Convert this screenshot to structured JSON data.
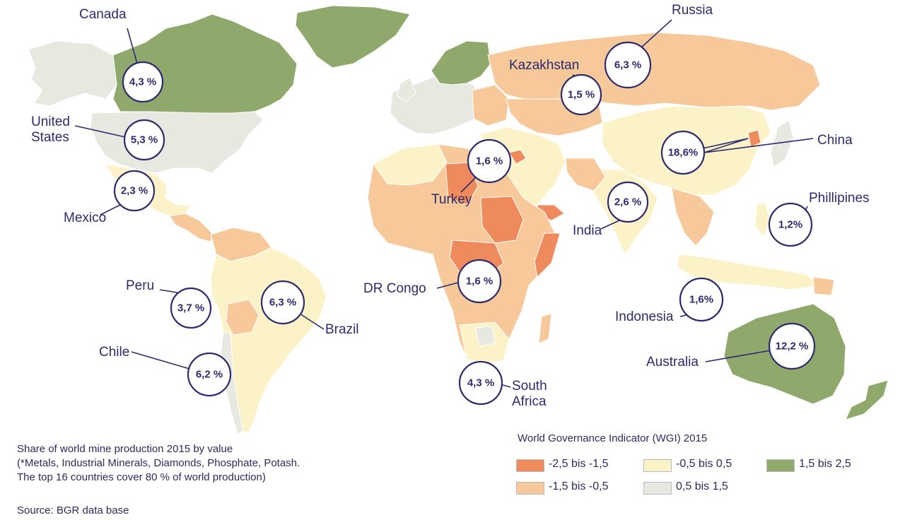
{
  "colors": {
    "wgi_neg_2_5_to_neg_1_5": "#ef8a5c",
    "wgi_neg_1_5_to_neg_0_5": "#f6c89a",
    "wgi_neg_0_5_to_0_5": "#fbf3c7",
    "wgi_0_5_to_1_5": "#e7e9e0",
    "wgi_1_5_to_2_5": "#8fa86b",
    "ocean": "#ffffff",
    "bubble_stroke": "#2b2b6e",
    "text": "#2b2b5e"
  },
  "countries": [
    {
      "name": "Canada",
      "share": "4,3 %",
      "wgi_class": "1,5 bis 2,5"
    },
    {
      "name": "Russia",
      "share": "6,3 %",
      "wgi_class": "-1,5 bis -0,5"
    },
    {
      "name": "Kazakhstan",
      "share": "1,5 %",
      "wgi_class": "-1,5 bis -0,5"
    },
    {
      "name": "United States",
      "label_lines": [
        "United",
        "States"
      ],
      "share": "5,3 %",
      "wgi_class": "0,5 bis 1,5"
    },
    {
      "name": "China",
      "share": "18,6%",
      "wgi_class": "-0,5 bis 0,5"
    },
    {
      "name": "Turkey",
      "share": "1,6 %",
      "wgi_class": "-0,5 bis 0,5"
    },
    {
      "name": "Mexico",
      "share": "2,3 %",
      "wgi_class": "-0,5 bis 0,5"
    },
    {
      "name": "India",
      "share": "2,6 %",
      "wgi_class": "-0,5 bis 0,5"
    },
    {
      "name": "Phillipines",
      "share": "1,2%",
      "wgi_class": "-0,5 bis 0,5"
    },
    {
      "name": "DR Congo",
      "share": "1,6 %",
      "wgi_class": "-2,5 bis -1,5"
    },
    {
      "name": "Peru",
      "share": "3,7 %",
      "wgi_class": "-0,5 bis 0,5"
    },
    {
      "name": "Brazil",
      "share": "6,3 %",
      "wgi_class": "-0,5 bis 0,5"
    },
    {
      "name": "Indonesia",
      "share": "1,6%",
      "wgi_class": "-0,5 bis 0,5"
    },
    {
      "name": "Chile",
      "share": "6,2 %",
      "wgi_class": "0,5 bis 1,5"
    },
    {
      "name": "Australia",
      "share": "12,2 %",
      "wgi_class": "1,5 bis 2,5"
    },
    {
      "name": "South Africa",
      "label_lines": [
        "South",
        "Africa"
      ],
      "share": "4,3 %",
      "wgi_class": "-0,5 bis 0,5"
    }
  ],
  "notes": {
    "line1": "Share of world mine production 2015 by value",
    "line2": "(*Metals, Industrial Minerals, Diamonds, Phosphate, Potash.",
    "line3": "The top 16 countries cover 80 % of world production)"
  },
  "source": "Source: BGR data base",
  "legend": {
    "title": "World Governance Indicator (WGI) 2015",
    "items": [
      {
        "label": "-2,5 bis -1,5",
        "color": "#ef8a5c"
      },
      {
        "label": "-1,5 bis -0,5",
        "color": "#f6c89a"
      },
      {
        "label": "-0,5 bis 0,5",
        "color": "#fbf3c7"
      },
      {
        "label": "0,5 bis 1,5",
        "color": "#e7e9e0"
      },
      {
        "label": "1,5 bis 2,5",
        "color": "#8fa86b"
      }
    ]
  }
}
